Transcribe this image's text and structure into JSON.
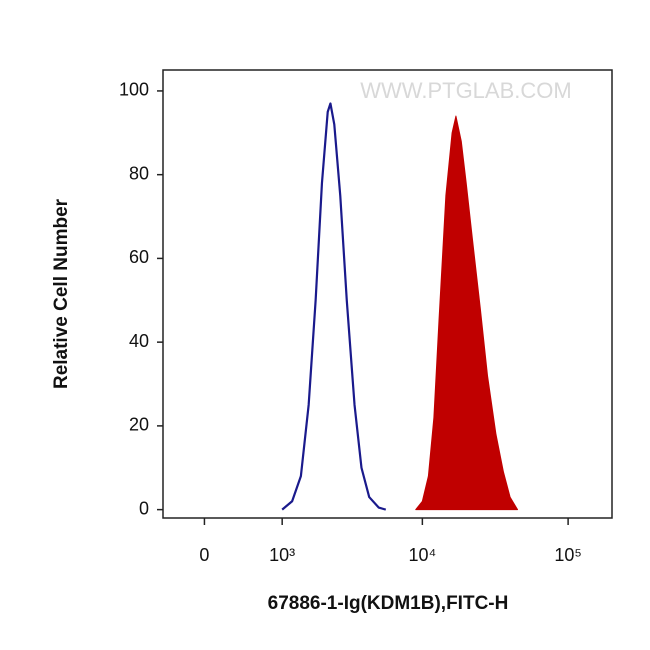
{
  "chart_data": {
    "type": "area",
    "watermark": "WWW.PTGLAB.COM",
    "x_label": "67886-1-Ig(KDM1B),FITC-H",
    "y_label": "Relative Cell Number",
    "xscale": "logicle",
    "xlim": [
      -450,
      200000
    ],
    "xticks": [
      0,
      {
        "value": 1000,
        "label": "10³"
      },
      {
        "value": 10000,
        "label": "10⁴"
      },
      {
        "value": 100000,
        "label": "10⁵"
      }
    ],
    "ylim": [
      -2,
      105
    ],
    "yticks": [
      0,
      20,
      40,
      60,
      80,
      100
    ],
    "series": [
      {
        "color": "#1a1a8c",
        "filled": false,
        "x": [
          1000,
          1200,
          1400,
          1600,
          1800,
          2000,
          2200,
          2300,
          2450,
          2700,
          3000,
          3400,
          3800,
          4300,
          5000,
          5600
        ],
        "values": [
          0,
          2,
          8,
          25,
          50,
          78,
          95,
          97,
          92,
          75,
          50,
          25,
          10,
          3,
          0.5,
          0
        ]
      },
      {
        "color": "#c00000",
        "filled": true,
        "x": [
          9000,
          10000,
          11000,
          12000,
          13000,
          14500,
          16000,
          17000,
          18500,
          20000,
          22000,
          25000,
          28000,
          32000,
          36000,
          40000,
          45000
        ],
        "values": [
          0,
          2,
          8,
          22,
          45,
          75,
          90,
          94,
          88,
          78,
          65,
          48,
          32,
          18,
          9,
          3,
          0
        ]
      }
    ]
  }
}
